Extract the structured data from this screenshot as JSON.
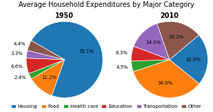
{
  "title": "Average Household Expenditures by Major Category",
  "legend": "lower center",
  "chart_data": [
    {
      "type": "pie",
      "title": "1950",
      "categories": [
        "Housing",
        "Food",
        "Health care",
        "Education",
        "Transportation",
        "Other"
      ],
      "values": [
        72.1,
        11.2,
        2.4,
        6.6,
        3.3,
        4.4
      ],
      "value_labels": [
        "72.1%",
        "11.2%",
        "2.4%",
        "6.6%",
        "3.3%",
        "4.4%"
      ],
      "data_labels": true
    },
    {
      "type": "pie",
      "title": "2010",
      "categories": [
        "Housing",
        "Food",
        "Health care",
        "Education",
        "Transportation",
        "Other"
      ],
      "values": [
        22.0,
        34.0,
        4.5,
        6.3,
        14.0,
        19.2
      ],
      "value_labels": [
        "22.0%",
        "34.0%",
        "4.5%",
        "6.3%",
        "14.0%",
        "19.2%"
      ],
      "data_labels": true
    }
  ]
}
